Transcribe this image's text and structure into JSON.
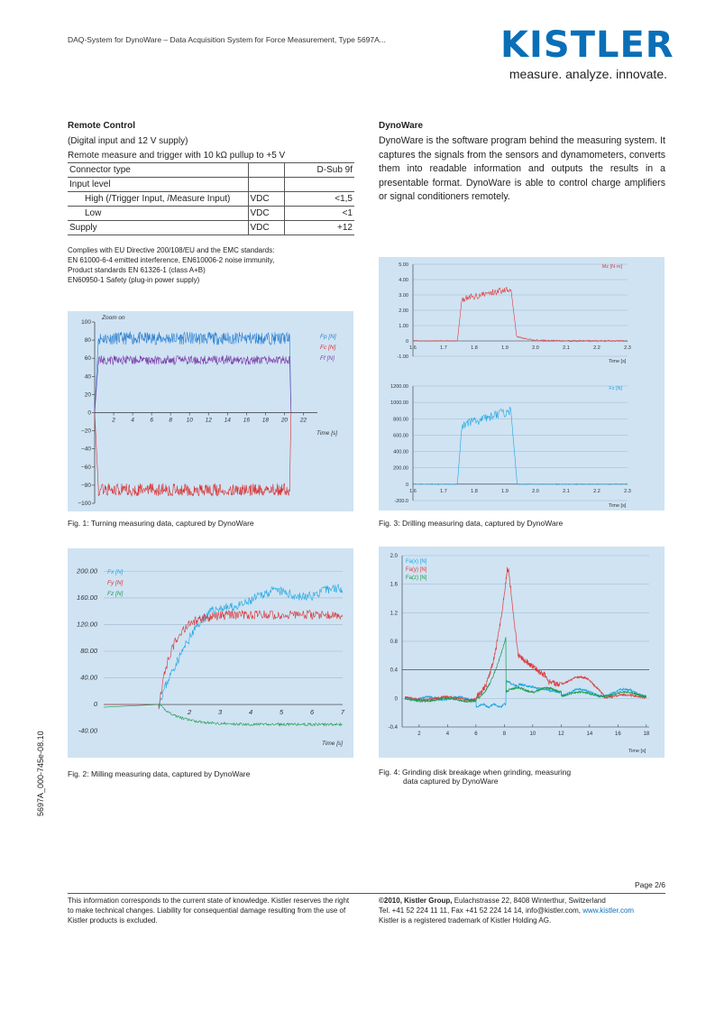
{
  "header": {
    "title": "DAQ-System for DynoWare – Data Acquisition System for Force Measurement, Type 5697A...",
    "logo_text": "KISTLER",
    "tagline": "measure. analyze. innovate."
  },
  "remote_control": {
    "title": "Remote Control",
    "subtitle": "(Digital input and 12 V supply)",
    "description": "Remote measure and trigger with 10 kΩ pullup to +5 V",
    "rows": [
      {
        "label": "Connector type",
        "unit": "",
        "value": "D-Sub 9f",
        "indent": false
      },
      {
        "label": "Input level",
        "unit": "",
        "value": "",
        "indent": false
      },
      {
        "label": "High (/Trigger Input, /Measure Input)",
        "unit": "VDC",
        "value": "<1,5",
        "indent": true
      },
      {
        "label": "Low",
        "unit": "VDC",
        "value": "<1",
        "indent": true
      },
      {
        "label": "Supply",
        "unit": "VDC",
        "value": "+12",
        "indent": false
      }
    ],
    "compliance": [
      "Complies with EU Directive 200/108/EU and the EMC standards:",
      "EN 61000-6-4 emitted interference, EN610006-2 noise immunity,",
      "Product standards EN 61326-1 (class A+B)",
      "EN60950-1 Safety (plug-in power supply)"
    ]
  },
  "dynoware": {
    "title": "DynoWare",
    "text": "DynoWare is the software program behind the measuring system. It captures the signals from the sensors and dynamometers, converts them into readable information and outputs the results in a presentable format. DynoWare is able to control charge amplifiers or signal conditioners remotely."
  },
  "captions": {
    "fig1": "Fig. 1: Turning measuring data, captured by DynoWare",
    "fig2": "Fig. 2: Milling measuring data, captured by DynoWare",
    "fig3": "Fig. 3: Drilling measuring data, captured by DynoWare",
    "fig4_line1": "Fig. 4: Grinding disk breakage when grinding, measuring",
    "fig4_line2": "data captured by DynoWare"
  },
  "chart_data": [
    {
      "type": "line",
      "id": "fig1",
      "annotation": "Zoom on",
      "xlabel": "Time [s]",
      "xlim": [
        0,
        23
      ],
      "ylim": [
        -100,
        100
      ],
      "x_ticks": [
        "2",
        "4",
        "6",
        "8",
        "10",
        "12",
        "14",
        "16",
        "18",
        "20",
        "22"
      ],
      "y_ticks": [
        "100",
        "80",
        "60",
        "40",
        "20",
        "0",
        "−20",
        "−40",
        "−60",
        "−80",
        "−100"
      ],
      "series": [
        {
          "name": "Fp [N]",
          "color": "#2b7fd0",
          "level": 82,
          "noise": 7,
          "start": 0.4,
          "end": 20.6
        },
        {
          "name": "Fc [N]",
          "color": "#d93030",
          "level": -85,
          "noise": 7,
          "start": 0.4,
          "end": 20.6
        },
        {
          "name": "Ff [N]",
          "color": "#7a3aa8",
          "level": 58,
          "noise": 5,
          "start": 0.4,
          "end": 20.6
        }
      ]
    },
    {
      "type": "line",
      "id": "fig2",
      "xlabel": "Time [s]",
      "xlim": [
        -0.8,
        7
      ],
      "ylim": [
        -50,
        210
      ],
      "x_ticks": [
        "2",
        "3",
        "4",
        "5",
        "6",
        "7"
      ],
      "y_ticks": [
        "200.00",
        "160.00",
        "120.00",
        "80.00",
        "40.00",
        "0",
        "-40.00"
      ],
      "series": [
        {
          "name": "Fx [N]",
          "color": "#1fa6e0",
          "level": 170
        },
        {
          "name": "Fy [N]",
          "color": "#d93030",
          "level": 135
        },
        {
          "name": "Fz [N]",
          "color": "#1e9a4a",
          "level": -30
        }
      ]
    },
    {
      "type": "line",
      "id": "fig3a",
      "series_label": "Mz [N·m]",
      "xlabel": "Time [s]",
      "xlim": [
        1.6,
        2.3
      ],
      "ylim": [
        -1,
        5
      ],
      "x_ticks": [
        "1.6",
        "1.7",
        "1.8",
        "1.9",
        "2.0",
        "2.1",
        "2.2",
        "2.3"
      ],
      "y_ticks": [
        "5.00",
        "4.00",
        "3.00",
        "2.00",
        "1.00",
        "0",
        "-1.00"
      ],
      "series": [
        {
          "name": "Mz [N·m]",
          "color": "#e03a3a",
          "level": 3.5
        }
      ]
    },
    {
      "type": "line",
      "id": "fig3b",
      "series_label": "Fz [N]",
      "xlabel": "Time [s]",
      "xlim": [
        1.6,
        2.3
      ],
      "ylim": [
        -200,
        1200
      ],
      "x_ticks": [
        "1.6",
        "1.7",
        "1.8",
        "1.9",
        "2.0",
        "2.1",
        "2.2",
        "2.3"
      ],
      "y_ticks": [
        "1200.00",
        "1000.00",
        "800.00",
        "600.00",
        "400.00",
        "200.00",
        "0",
        "-200.0"
      ],
      "series": [
        {
          "name": "Fz [N]",
          "color": "#1fa6e0",
          "level": 920
        }
      ]
    },
    {
      "type": "line",
      "id": "fig4",
      "xlabel": "Time [s]",
      "xlim": [
        0.8,
        18.2
      ],
      "ylim": [
        -0.4,
        2.0
      ],
      "x_ticks": [
        "2",
        "4",
        "6",
        "8",
        "10",
        "12",
        "14",
        "16",
        "18"
      ],
      "y_ticks": [
        "2.0",
        "1.6",
        "1.2",
        "0.8",
        "0.4",
        "0",
        "-0.4"
      ],
      "series": [
        {
          "name": "Fa(x) [N]",
          "color": "#1fa6e0"
        },
        {
          "name": "Fa(y) [N]",
          "color": "#e03a3a"
        },
        {
          "name": "Fa(z) [N]",
          "color": "#1e9a4a"
        }
      ]
    }
  ],
  "sidebar_code": "5697A_000-745e-08.10",
  "footer": {
    "page": "Page 2/6",
    "left": "This information corresponds to the current state of knowledge. Kistler reserves the right to make technical changes. Liability for consequential damage resulting from the use of Kistler products is excluded.",
    "copyright": "©2010, Kistler Group,",
    "address": " Eulachstrasse 22, 8408 Winterthur, Switzerland",
    "contact": "Tel. +41 52 224 11 11, Fax +41 52 224 14 14, info@kistler.com,",
    "website": " www.kistler.com",
    "trademark": "Kistler is a registered trademark of Kistler Holding AG."
  }
}
